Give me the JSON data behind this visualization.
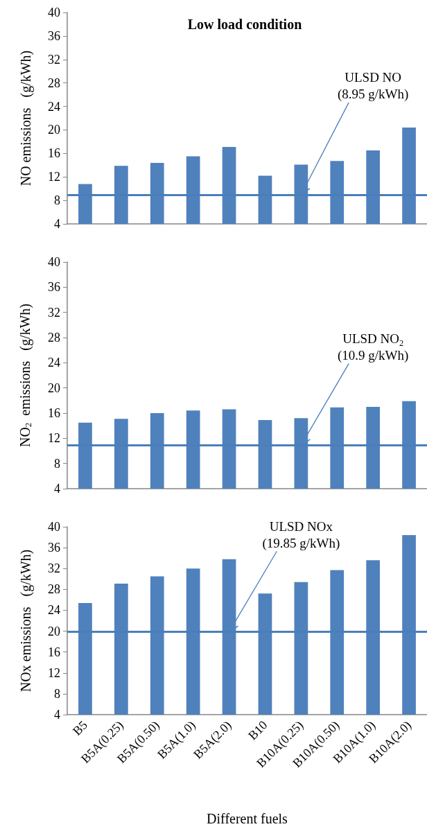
{
  "chart_data": [
    {
      "type": "bar",
      "title": "Low load condition",
      "ylabel": "NO emissions   (g/kWh)",
      "categories": [
        null,
        null,
        null,
        null,
        null,
        null,
        null,
        null,
        null,
        null
      ],
      "color": "#4f81bd",
      "values": [
        10.8,
        13.9,
        14.4,
        15.5,
        17.1,
        12.2,
        14.1,
        14.7,
        16.5,
        20.4
      ],
      "ylim": [
        4,
        40
      ],
      "yticks": [
        4,
        8,
        12,
        16,
        20,
        24,
        28,
        32,
        36,
        40
      ],
      "tick_labels": "y",
      "ref_lines": [
        {
          "axis": "y",
          "value": 8.95,
          "label": "ULSD NO\n(8.95 g/kWh)",
          "color": "#4a7ebb"
        }
      ]
    },
    {
      "type": "bar",
      "ylabel": "NO$_{2}$  emissions   (g/kWh)",
      "categories": [
        null,
        null,
        null,
        null,
        null,
        null,
        null,
        null,
        null,
        null
      ],
      "color": "#4f81bd",
      "values": [
        14.5,
        15.1,
        16.0,
        16.4,
        16.6,
        14.9,
        15.2,
        16.9,
        17.0,
        17.9
      ],
      "ylim": [
        4,
        40
      ],
      "yticks": [
        4,
        8,
        12,
        16,
        20,
        24,
        28,
        32,
        36,
        40
      ],
      "tick_labels": "y",
      "ref_lines": [
        {
          "axis": "y",
          "value": 10.9,
          "label": "ULSD NO$_{2}$\n(10.9 g/kWh)",
          "color": "#4a7ebb"
        }
      ]
    },
    {
      "type": "bar",
      "xlabel": "Different fuels",
      "ylabel": "NOx emissions   (g/kWh)",
      "categories": [
        "B5",
        "B5A(0.25)",
        "B5A(0.50)",
        "B5A(1.0)",
        "B5A(2.0)",
        "B10",
        "B10A(0.25)",
        "B10A(0.50)",
        "B10A(1.0)",
        "B10A(2.0)"
      ],
      "color": "#4f81bd",
      "values": [
        25.4,
        29.1,
        30.5,
        32.0,
        33.8,
        27.2,
        29.4,
        31.7,
        33.6,
        38.4
      ],
      "ylim": [
        4,
        40
      ],
      "yticks": [
        4,
        8,
        12,
        16,
        20,
        24,
        28,
        32,
        36,
        40
      ],
      "ref_lines": [
        {
          "axis": "y",
          "value": 19.85,
          "label": "ULSD NOx\n(19.85 g/kWh)",
          "color": "#4a7ebb"
        }
      ]
    }
  ]
}
